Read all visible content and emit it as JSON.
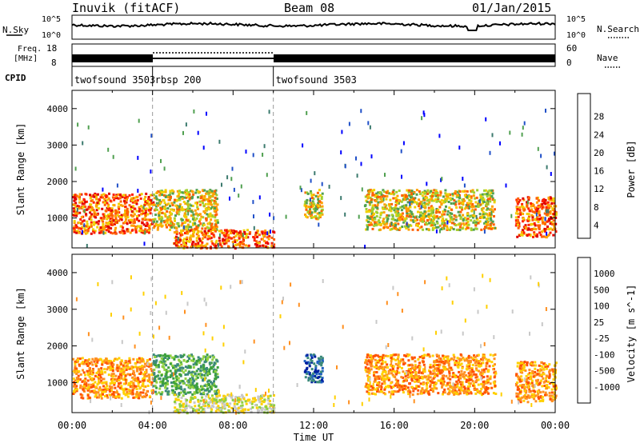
{
  "header": {
    "station": "Inuvik (fitACF)",
    "beam": "Beam 08",
    "date": "01/Jan/2015"
  },
  "top_panels": {
    "nsky_label": "N.Sky",
    "nsky_ticks": [
      "10^5",
      "10^0"
    ],
    "nsearch_label": "N.Search",
    "nsearch_ticks": [
      "10^5",
      "10^0"
    ],
    "freq_label_line1": "Freq.",
    "freq_label_line2": "[MHz]",
    "freq_ticks": [
      "18",
      "8"
    ],
    "nave_label": "Nave",
    "nave_ticks": [
      "60",
      "0"
    ],
    "cpid_label": "CPID",
    "cpid_segments": [
      {
        "name": "twofsound 3503",
        "start": 0,
        "end": 4
      },
      {
        "name": "rbsp 200",
        "start": 4,
        "end": 10
      },
      {
        "name": "twofsound 3503",
        "start": 10,
        "end": 24
      }
    ]
  },
  "chart_data": [
    {
      "type": "heatmap",
      "quantity": "Power",
      "xlabel": "",
      "ylabel": "Slant Range [km]",
      "xlim": [
        0,
        24
      ],
      "ylim": [
        180,
        4500
      ],
      "yticks": [
        1000,
        2000,
        3000,
        4000
      ],
      "colorbar_label": "Power [dB]",
      "colorbar_ticks": [
        "28",
        "24",
        "20",
        "16",
        "12",
        "8",
        "4"
      ],
      "colorbar_colors": [
        "#0000ff",
        "#2050c8",
        "#3c7a6e",
        "#50a050",
        "#a0d030",
        "#f0d000",
        "#ffa000",
        "#ff6000",
        "#ff2000",
        "#e00000"
      ],
      "echo_regions": [
        {
          "t0": 0.0,
          "t1": 4.0,
          "r0": 600,
          "r1": 1700,
          "level": "strong"
        },
        {
          "t0": 4.0,
          "t1": 7.2,
          "r0": 700,
          "r1": 1800,
          "level": "medium"
        },
        {
          "t0": 5.0,
          "t1": 10.0,
          "r0": 200,
          "r1": 700,
          "level": "strong"
        },
        {
          "t0": 11.5,
          "t1": 12.4,
          "r0": 1000,
          "r1": 1800,
          "level": "medium"
        },
        {
          "t0": 14.5,
          "t1": 21.0,
          "r0": 700,
          "r1": 1800,
          "level": "medium"
        },
        {
          "t0": 22.0,
          "t1": 24.0,
          "r0": 500,
          "r1": 1600,
          "level": "strong"
        }
      ]
    },
    {
      "type": "heatmap",
      "quantity": "Velocity",
      "xlabel": "Time UT",
      "ylabel": "Slant Range [km]",
      "xlim": [
        0,
        24
      ],
      "ylim": [
        180,
        4500
      ],
      "yticks": [
        1000,
        2000,
        3000,
        4000
      ],
      "xticks": [
        "00:00",
        "04:00",
        "08:00",
        "12:00",
        "16:00",
        "20:00",
        "00:00"
      ],
      "colorbar_label": "Velocity [m s^-1]",
      "colorbar_ticks": [
        "1000",
        "500",
        "100",
        "25",
        "-25",
        "-100",
        "-500",
        "-1000"
      ],
      "colorbar_colors": [
        "#0020a0",
        "#2060c0",
        "#3c8a7a",
        "#3ca03c",
        "#90d040",
        "#c8c8c8",
        "#ffd000",
        "#ff9020",
        "#ff5000",
        "#e00000"
      ],
      "echo_regions": [
        {
          "t0": 0.0,
          "t1": 4.0,
          "r0": 600,
          "r1": 1700,
          "level": "negative"
        },
        {
          "t0": 4.0,
          "t1": 7.2,
          "r0": 700,
          "r1": 1800,
          "level": "positive"
        },
        {
          "t0": 5.0,
          "t1": 10.0,
          "r0": 200,
          "r1": 700,
          "level": "near-zero"
        },
        {
          "t0": 11.5,
          "t1": 12.4,
          "r0": 1000,
          "r1": 1800,
          "level": "strong-positive"
        },
        {
          "t0": 14.5,
          "t1": 21.0,
          "r0": 700,
          "r1": 1800,
          "level": "negative"
        },
        {
          "t0": 22.0,
          "t1": 24.0,
          "r0": 500,
          "r1": 1600,
          "level": "negative"
        }
      ]
    }
  ]
}
